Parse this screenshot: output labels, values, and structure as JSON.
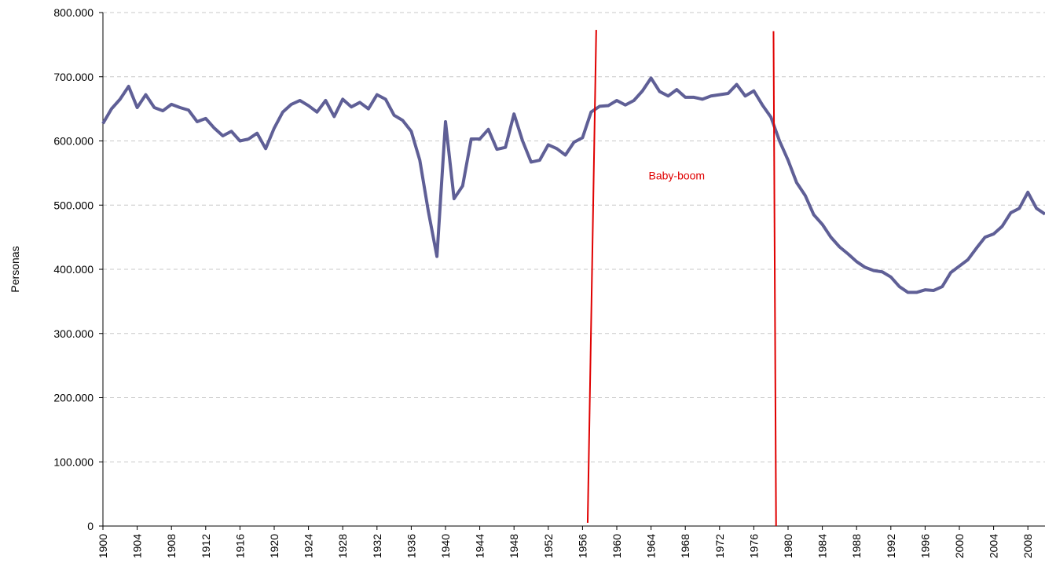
{
  "chart_data": {
    "type": "line",
    "y_label": "Personas",
    "x": [
      1900,
      1901,
      1902,
      1903,
      1904,
      1905,
      1906,
      1907,
      1908,
      1909,
      1910,
      1911,
      1912,
      1913,
      1914,
      1915,
      1916,
      1917,
      1918,
      1919,
      1920,
      1921,
      1922,
      1923,
      1924,
      1925,
      1926,
      1927,
      1928,
      1929,
      1930,
      1931,
      1932,
      1933,
      1934,
      1935,
      1936,
      1937,
      1938,
      1939,
      1940,
      1941,
      1942,
      1943,
      1944,
      1945,
      1946,
      1947,
      1948,
      1949,
      1950,
      1951,
      1952,
      1953,
      1954,
      1955,
      1956,
      1957,
      1958,
      1959,
      1960,
      1961,
      1962,
      1963,
      1964,
      1965,
      1966,
      1967,
      1968,
      1969,
      1970,
      1971,
      1972,
      1973,
      1974,
      1975,
      1976,
      1977,
      1978,
      1979,
      1980,
      1981,
      1982,
      1983,
      1984,
      1985,
      1986,
      1987,
      1988,
      1989,
      1990,
      1991,
      1992,
      1993,
      1994,
      1995,
      1996,
      1997,
      1998,
      1999,
      2000,
      2001,
      2002,
      2003,
      2004,
      2005,
      2006,
      2007,
      2008,
      2009,
      2010
    ],
    "series": [
      {
        "name": "Personas",
        "color": "#5f5f96",
        "values": [
          627000,
          650000,
          665000,
          685000,
          652000,
          672000,
          652000,
          647000,
          657000,
          652000,
          648000,
          630000,
          635000,
          620000,
          608000,
          615000,
          600000,
          603000,
          612000,
          588000,
          620000,
          645000,
          657000,
          663000,
          655000,
          645000,
          663000,
          638000,
          665000,
          653000,
          660000,
          650000,
          672000,
          665000,
          640000,
          632000,
          615000,
          570000,
          490000,
          420000,
          630000,
          510000,
          530000,
          603000,
          603000,
          618000,
          587000,
          590000,
          642000,
          600000,
          567000,
          570000,
          594000,
          588000,
          578000,
          598000,
          605000,
          645000,
          654000,
          655000,
          663000,
          656000,
          663000,
          678000,
          698000,
          677000,
          670000,
          680000,
          668000,
          668000,
          665000,
          670000,
          672000,
          674000,
          688000,
          670000,
          678000,
          656000,
          637000,
          600000,
          570000,
          535000,
          515000,
          485000,
          470000,
          450000,
          435000,
          424000,
          412000,
          403000,
          398000,
          396000,
          388000,
          373000,
          364000,
          364000,
          368000,
          367000,
          373000,
          395000,
          405000,
          415000,
          433000,
          450000,
          455000,
          467000,
          488000,
          495000,
          520000,
          495000,
          486000
        ]
      }
    ],
    "xlim": [
      1900,
      2010
    ],
    "xticks": [
      1900,
      1904,
      1908,
      1912,
      1916,
      1920,
      1924,
      1928,
      1932,
      1936,
      1940,
      1944,
      1948,
      1952,
      1956,
      1960,
      1964,
      1968,
      1972,
      1976,
      1980,
      1984,
      1988,
      1992,
      1996,
      2000,
      2004,
      2008
    ],
    "ylim": [
      0,
      800000
    ],
    "yticks": [
      0,
      {
        "value": 100000,
        "label": "100.000"
      },
      {
        "value": 200000,
        "label": "200.000"
      },
      {
        "value": 300000,
        "label": "300.000"
      },
      {
        "value": 400000,
        "label": "400.000"
      },
      {
        "value": 500000,
        "label": "500.000"
      },
      {
        "value": 600000,
        "label": "600.000"
      },
      {
        "value": 700000,
        "label": "700.000"
      },
      {
        "value": 800000,
        "label": "800.000"
      }
    ],
    "grid": true,
    "annotation_lines": [
      {
        "color": "#e00000",
        "x": [
          1956.6,
          1957.6
        ],
        "y": [
          5000,
          773000
        ]
      },
      {
        "color": "#e00000",
        "x": [
          1978.3,
          1978.6
        ],
        "y": [
          771000,
          0
        ]
      }
    ],
    "annotations": [
      {
        "text": "Baby-boom",
        "color": "#e00000",
        "x": 1967,
        "y": 540000
      }
    ]
  }
}
